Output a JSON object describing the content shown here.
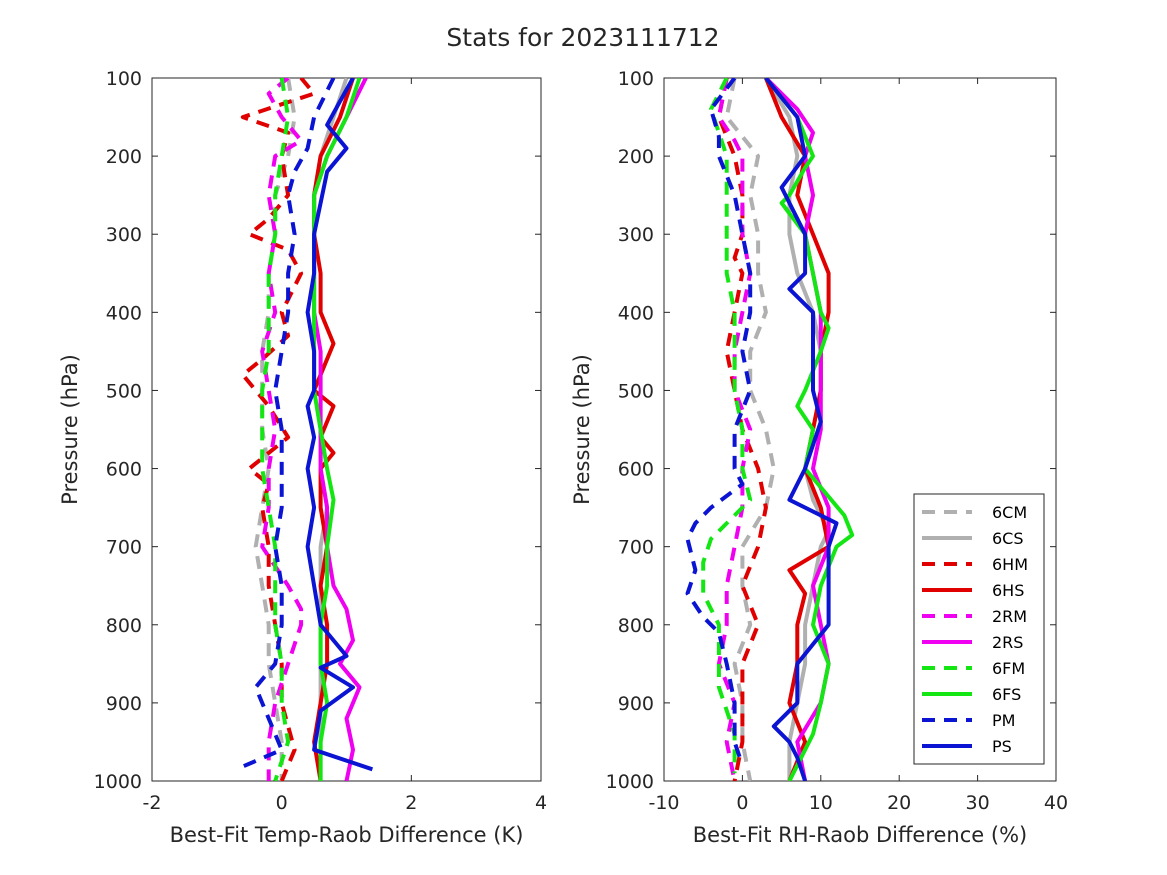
{
  "figure": {
    "title": "Stats for 2023111712"
  },
  "legend": {
    "placement": "lower-right of right panel",
    "entries": [
      {
        "label": "6CM",
        "color": "#b0b0b0",
        "style": "dashed"
      },
      {
        "label": "6CS",
        "color": "#b0b0b0",
        "style": "solid"
      },
      {
        "label": "6HM",
        "color": "#e00000",
        "style": "dashed"
      },
      {
        "label": "6HS",
        "color": "#e00000",
        "style": "solid"
      },
      {
        "label": "2RM",
        "color": "#f000f0",
        "style": "dashed"
      },
      {
        "label": "2RS",
        "color": "#f000f0",
        "style": "solid"
      },
      {
        "label": "6FM",
        "color": "#14e614",
        "style": "dashed"
      },
      {
        "label": "6FS",
        "color": "#14e614",
        "style": "solid"
      },
      {
        "label": "PM",
        "color": "#0a14d2",
        "style": "dashed"
      },
      {
        "label": "PS",
        "color": "#0a14d2",
        "style": "solid"
      }
    ]
  },
  "chart_data": [
    {
      "type": "line",
      "panel": "left",
      "title": "",
      "xlabel": "Best-Fit Temp-Raob Difference (K)",
      "ylabel": "Pressure (hPa)",
      "xlim": [
        -2,
        4
      ],
      "ylim": [
        100,
        1000
      ],
      "y_reversed": true,
      "x_ticks": [
        -2,
        0,
        2,
        4
      ],
      "y_ticks": [
        100,
        200,
        300,
        400,
        500,
        600,
        700,
        800,
        900,
        1000
      ],
      "grid": false,
      "series": [
        {
          "name": "6CM",
          "pressure": [
            100,
            150,
            200,
            250,
            300,
            350,
            400,
            450,
            500,
            550,
            600,
            650,
            700,
            750,
            800,
            850,
            900,
            950,
            1000
          ],
          "values": [
            0.1,
            0.2,
            0.1,
            -0.1,
            -0.1,
            -0.2,
            -0.2,
            -0.3,
            -0.3,
            -0.3,
            -0.2,
            -0.3,
            -0.4,
            -0.3,
            -0.2,
            -0.2,
            -0.1,
            0.0,
            0.0
          ]
        },
        {
          "name": "6CS",
          "pressure": [
            100,
            150,
            200,
            250,
            300,
            350,
            400,
            450,
            500,
            550,
            600,
            650,
            700,
            750,
            800,
            850,
            900,
            950,
            1000
          ],
          "values": [
            1.0,
            0.8,
            0.6,
            0.5,
            0.5,
            0.5,
            0.5,
            0.5,
            0.5,
            0.6,
            0.6,
            0.7,
            0.6,
            0.6,
            0.6,
            0.6,
            0.6,
            0.6,
            0.6
          ]
        },
        {
          "name": "6HM",
          "pressure": [
            100,
            120,
            150,
            170,
            200,
            250,
            280,
            300,
            320,
            350,
            400,
            430,
            460,
            480,
            520,
            560,
            600,
            620,
            650,
            700,
            750,
            800,
            850,
            900,
            960,
            1000
          ],
          "values": [
            0.3,
            0.5,
            -0.6,
            0.1,
            0.0,
            0.1,
            -0.2,
            -0.5,
            0.1,
            0.3,
            0.0,
            0.1,
            -0.3,
            -0.6,
            -0.2,
            0.1,
            -0.5,
            -0.2,
            -0.3,
            -0.2,
            -0.2,
            -0.1,
            0.0,
            0.0,
            0.2,
            0.0
          ]
        },
        {
          "name": "6HS",
          "pressure": [
            100,
            150,
            200,
            250,
            300,
            350,
            400,
            440,
            480,
            500,
            520,
            560,
            580,
            600,
            650,
            700,
            750,
            800,
            850,
            900,
            950,
            1000
          ],
          "values": [
            1.1,
            0.9,
            0.6,
            0.5,
            0.5,
            0.6,
            0.6,
            0.8,
            0.6,
            0.5,
            0.8,
            0.6,
            0.8,
            0.6,
            0.6,
            0.7,
            0.6,
            0.7,
            0.7,
            0.6,
            0.5,
            0.6
          ]
        },
        {
          "name": "2RM",
          "pressure": [
            100,
            120,
            150,
            180,
            200,
            250,
            300,
            350,
            400,
            450,
            500,
            550,
            600,
            650,
            700,
            750,
            780,
            800,
            850,
            900,
            950,
            1000
          ],
          "values": [
            0.1,
            -0.2,
            0.0,
            0.3,
            -0.1,
            -0.2,
            -0.1,
            -0.2,
            -0.1,
            -0.3,
            -0.2,
            -0.1,
            -0.2,
            -0.2,
            -0.3,
            0.1,
            0.3,
            0.3,
            0.1,
            -0.1,
            -0.2,
            -0.2
          ]
        },
        {
          "name": "2RS",
          "pressure": [
            100,
            150,
            200,
            250,
            300,
            350,
            400,
            450,
            500,
            550,
            600,
            650,
            700,
            750,
            780,
            820,
            850,
            880,
            920,
            960,
            1000
          ],
          "values": [
            1.3,
            1.0,
            0.7,
            0.5,
            0.5,
            0.5,
            0.5,
            0.6,
            0.6,
            0.6,
            0.6,
            0.7,
            0.7,
            0.8,
            1.0,
            1.1,
            0.9,
            1.2,
            1.0,
            1.1,
            1.0
          ]
        },
        {
          "name": "6FM",
          "pressure": [
            100,
            150,
            200,
            250,
            300,
            350,
            400,
            450,
            500,
            550,
            600,
            650,
            700,
            750,
            800,
            850,
            900,
            950,
            1000
          ],
          "values": [
            0.0,
            0.1,
            0.0,
            -0.1,
            -0.1,
            -0.2,
            -0.2,
            -0.2,
            -0.3,
            -0.3,
            -0.3,
            -0.2,
            -0.1,
            -0.1,
            -0.1,
            0.0,
            0.0,
            0.1,
            -0.1
          ]
        },
        {
          "name": "6FS",
          "pressure": [
            100,
            150,
            200,
            250,
            300,
            350,
            400,
            450,
            500,
            550,
            600,
            640,
            700,
            750,
            800,
            850,
            900,
            950,
            1000
          ],
          "values": [
            1.2,
            1.0,
            0.7,
            0.5,
            0.5,
            0.5,
            0.5,
            0.5,
            0.5,
            0.6,
            0.7,
            0.8,
            0.7,
            0.7,
            0.6,
            0.6,
            0.7,
            0.6,
            0.6
          ]
        },
        {
          "name": "PM",
          "pressure": [
            100,
            150,
            190,
            220,
            250,
            300,
            350,
            400,
            450,
            500,
            550,
            600,
            650,
            700,
            750,
            800,
            850,
            880,
            920,
            960,
            985
          ],
          "values": [
            0.8,
            0.5,
            0.4,
            0.2,
            0.1,
            0.2,
            0.1,
            0.1,
            0.0,
            -0.1,
            0.0,
            0.0,
            0.0,
            -0.1,
            0.0,
            0.0,
            -0.1,
            -0.4,
            -0.2,
            0.0,
            -0.7
          ]
        },
        {
          "name": "PS",
          "pressure": [
            100,
            130,
            160,
            190,
            220,
            260,
            300,
            350,
            400,
            450,
            500,
            520,
            560,
            600,
            650,
            700,
            750,
            800,
            840,
            855,
            880,
            910,
            960,
            985
          ],
          "values": [
            1.1,
            0.9,
            0.7,
            1.0,
            0.7,
            0.6,
            0.5,
            0.5,
            0.4,
            0.5,
            0.5,
            0.4,
            0.5,
            0.4,
            0.5,
            0.4,
            0.5,
            0.6,
            1.0,
            0.6,
            1.1,
            0.6,
            0.5,
            1.4
          ]
        }
      ]
    },
    {
      "type": "line",
      "panel": "right",
      "title": "",
      "xlabel": "Best-Fit RH-Raob Difference (%)",
      "ylabel": "Pressure (hPa)",
      "xlim": [
        -10,
        40
      ],
      "ylim": [
        100,
        1000
      ],
      "y_reversed": true,
      "x_ticks": [
        -10,
        0,
        10,
        20,
        30,
        40
      ],
      "y_ticks": [
        100,
        200,
        300,
        400,
        500,
        600,
        700,
        800,
        900,
        1000
      ],
      "grid": false,
      "series": [
        {
          "name": "6CM",
          "pressure": [
            100,
            150,
            200,
            250,
            300,
            350,
            400,
            450,
            500,
            550,
            600,
            650,
            700,
            750,
            800,
            850,
            900,
            950,
            1000
          ],
          "values": [
            -1,
            -2,
            2,
            1,
            2,
            2,
            3,
            1,
            1,
            3,
            4,
            3,
            0,
            0,
            1,
            -1,
            0,
            0,
            1
          ]
        },
        {
          "name": "6CS",
          "pressure": [
            100,
            150,
            200,
            250,
            300,
            350,
            400,
            450,
            500,
            550,
            600,
            640,
            680,
            700,
            750,
            800,
            850,
            900,
            950,
            1000
          ],
          "values": [
            3,
            6,
            7,
            6,
            6,
            7,
            9,
            10,
            10,
            9,
            8,
            9,
            11,
            10,
            9,
            8,
            8,
            7,
            6,
            6
          ]
        },
        {
          "name": "6HM",
          "pressure": [
            100,
            150,
            200,
            250,
            300,
            330,
            350,
            400,
            450,
            500,
            550,
            600,
            650,
            700,
            750,
            800,
            850,
            900,
            950,
            1000
          ],
          "values": [
            -2,
            -3,
            -1,
            0,
            0,
            -1,
            0,
            -1,
            -2,
            -1,
            0,
            2,
            3,
            2,
            0,
            2,
            0,
            0,
            0,
            -1
          ]
        },
        {
          "name": "6HS",
          "pressure": [
            100,
            150,
            200,
            250,
            300,
            350,
            400,
            450,
            500,
            550,
            600,
            650,
            700,
            730,
            760,
            800,
            850,
            900,
            950,
            1000
          ],
          "values": [
            3,
            5,
            8,
            7,
            9,
            11,
            11,
            10,
            10,
            9,
            8,
            10,
            11,
            6,
            8,
            7,
            7,
            6,
            8,
            6
          ]
        },
        {
          "name": "2RM",
          "pressure": [
            100,
            150,
            180,
            200,
            250,
            300,
            350,
            400,
            450,
            500,
            550,
            600,
            650,
            700,
            750,
            800,
            850,
            900,
            950,
            1000
          ],
          "values": [
            -2,
            -3,
            -1,
            0,
            0,
            0,
            1,
            0,
            -1,
            -1,
            1,
            0,
            0,
            -1,
            -2,
            -2,
            -3,
            -1,
            -2,
            -1
          ]
        },
        {
          "name": "2RS",
          "pressure": [
            100,
            140,
            170,
            200,
            250,
            300,
            350,
            400,
            450,
            500,
            550,
            600,
            650,
            700,
            750,
            800,
            850,
            900,
            950,
            1000
          ],
          "values": [
            3,
            7,
            9,
            8,
            9,
            8,
            9,
            10,
            10,
            10,
            10,
            9,
            11,
            11,
            9,
            10,
            11,
            10,
            7,
            8
          ]
        },
        {
          "name": "6FM",
          "pressure": [
            100,
            140,
            200,
            250,
            300,
            350,
            400,
            450,
            500,
            550,
            600,
            640,
            660,
            690,
            720,
            760,
            800,
            840,
            880,
            940,
            990
          ],
          "values": [
            -2,
            -4,
            -2,
            -2,
            -2,
            -2,
            -1,
            -1,
            -1,
            0,
            0,
            1,
            -1,
            -4,
            -5,
            -5,
            -3,
            -3,
            -3,
            -1,
            -1
          ]
        },
        {
          "name": "6FS",
          "pressure": [
            100,
            150,
            200,
            215,
            250,
            260,
            300,
            350,
            400,
            420,
            450,
            500,
            520,
            550,
            600,
            660,
            685,
            700,
            750,
            800,
            850,
            900,
            940,
            960,
            1000
          ],
          "values": [
            3,
            7,
            9,
            8,
            6,
            5,
            8,
            9,
            10,
            11,
            10,
            8,
            7,
            9,
            8,
            13,
            14,
            12,
            10,
            9,
            11,
            10,
            9,
            8,
            6
          ]
        },
        {
          "name": "PM",
          "pressure": [
            100,
            140,
            175,
            200,
            250,
            300,
            350,
            400,
            450,
            500,
            550,
            600,
            620,
            650,
            670,
            690,
            730,
            760,
            790,
            810,
            850,
            900,
            950,
            980
          ],
          "values": [
            -1,
            -4,
            -3,
            -3,
            -1,
            0,
            1,
            1,
            0,
            1,
            -1,
            -1,
            0,
            -4,
            -6,
            -7,
            -6,
            -7,
            -5,
            -3,
            -2,
            -1,
            -1,
            0
          ]
        },
        {
          "name": "PS",
          "pressure": [
            100,
            150,
            200,
            240,
            300,
            350,
            370,
            400,
            450,
            500,
            540,
            600,
            640,
            670,
            700,
            750,
            800,
            850,
            900,
            930,
            950,
            970,
            1000
          ],
          "values": [
            3,
            7,
            8,
            5,
            8,
            8,
            6,
            9,
            9,
            9,
            10,
            8,
            6,
            12,
            11,
            11,
            11,
            7,
            7,
            4,
            6,
            7,
            8
          ]
        }
      ]
    }
  ]
}
